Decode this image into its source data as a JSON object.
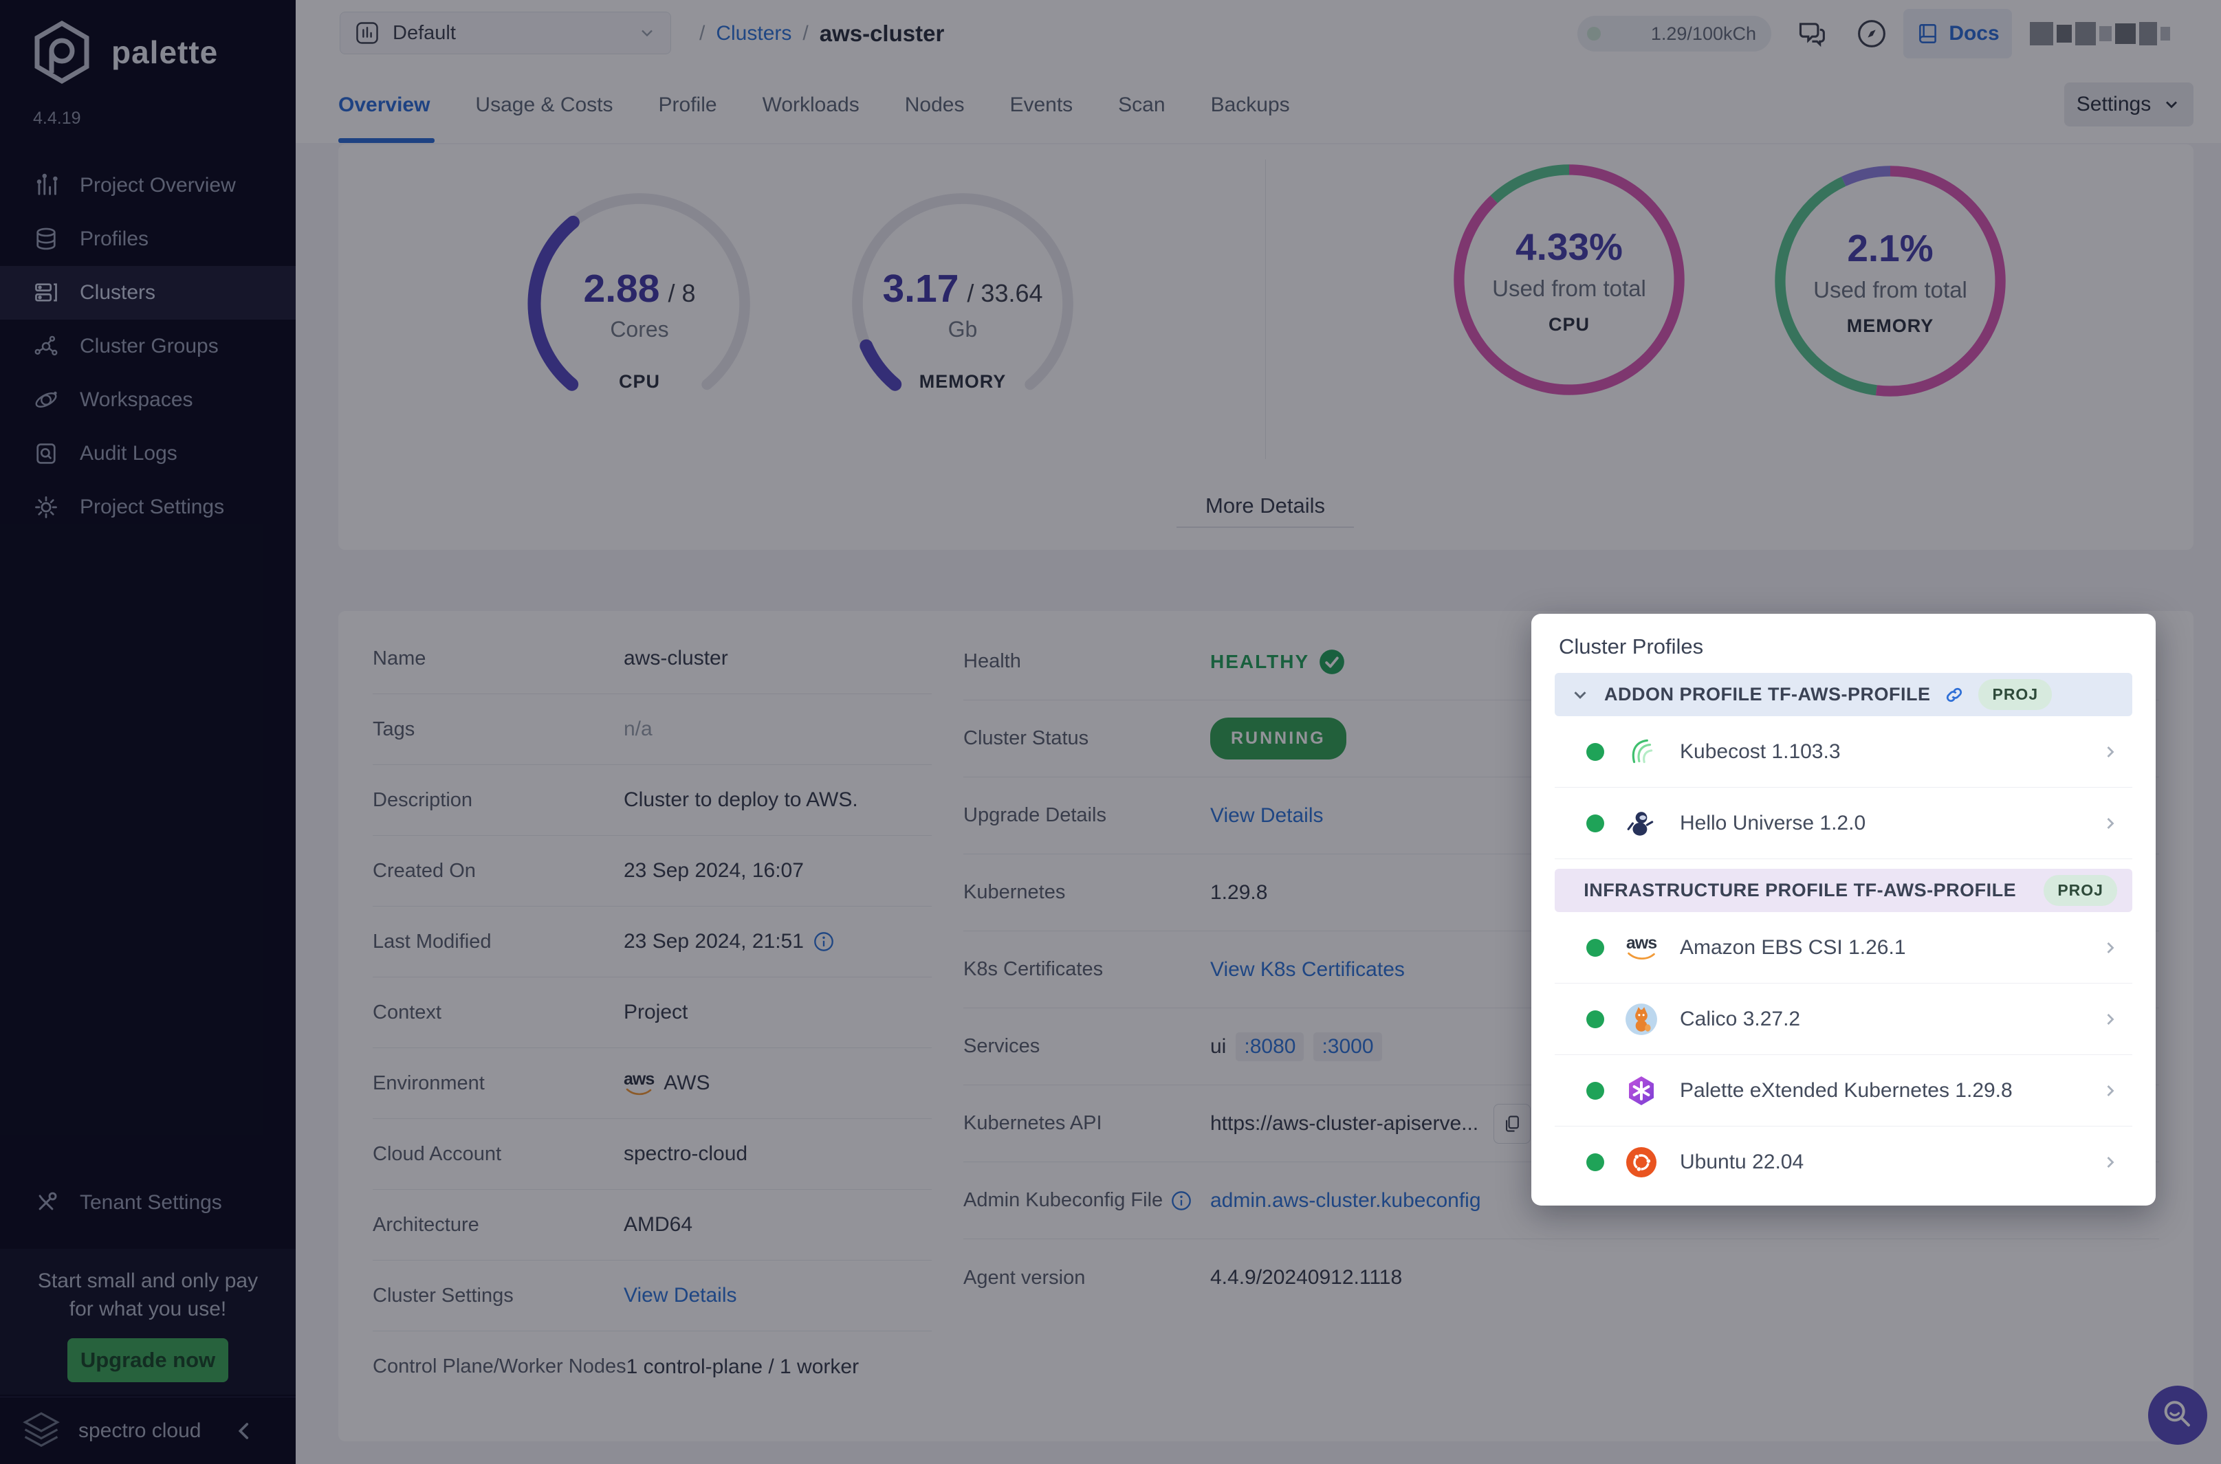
{
  "colors": {
    "accent_blue": "#3077d8",
    "active_tab_blue": "#2f6fd6",
    "success_green": "#27a55e",
    "running_badge_bg": "#36a558",
    "donut_pink": "#d95cb4",
    "donut_green": "#5cc793",
    "donut_purple": "#8f85e0",
    "gauge_indigo": "#564cc0",
    "sidebar_bg": "#0d0e20",
    "upgrade_green": "#3fa85c",
    "fab_indigo": "#5b50c0"
  },
  "sidebar": {
    "logo_text": "palette",
    "version": "4.4.19",
    "items": [
      {
        "label": "Project Overview",
        "icon": "bar-chart-icon",
        "active": false
      },
      {
        "label": "Profiles",
        "icon": "layers-icon",
        "active": false
      },
      {
        "label": "Clusters",
        "icon": "server-icon",
        "active": true
      },
      {
        "label": "Cluster Groups",
        "icon": "network-icon",
        "active": false
      },
      {
        "label": "Workspaces",
        "icon": "orbit-icon",
        "active": false
      },
      {
        "label": "Audit Logs",
        "icon": "audit-icon",
        "active": false
      },
      {
        "label": "Project Settings",
        "icon": "gear-icon",
        "active": false
      }
    ],
    "tenant_settings_label": "Tenant Settings",
    "promo": {
      "line1": "Start small and only pay",
      "line2": "for what you use!",
      "button_label": "Upgrade now"
    },
    "footer": {
      "brand": "spectro cloud"
    }
  },
  "topbar": {
    "project_selector": "Default",
    "breadcrumb": {
      "sep1": "/",
      "link": "Clusters",
      "sep2": "/",
      "current": "aws-cluster"
    },
    "usage_badge": "1.29/100kCh",
    "docs_label": "Docs"
  },
  "tabs": {
    "items": [
      "Overview",
      "Usage & Costs",
      "Profile",
      "Workloads",
      "Nodes",
      "Events",
      "Scan",
      "Backups"
    ],
    "active": "Overview",
    "settings_button": "Settings"
  },
  "chart_data": [
    {
      "id": "cpu-gauge",
      "type": "gauge",
      "value": 2.88,
      "total": 8,
      "value_label": "2.88",
      "total_label": "/ 8",
      "unit": "Cores",
      "footer": "CPU",
      "arc_color": "#564cc0",
      "track_color": "#e8e8ee",
      "span_deg": 280,
      "start_deg": 220
    },
    {
      "id": "memory-gauge",
      "type": "gauge",
      "value": 3.17,
      "total": 33.64,
      "value_label": "3.17",
      "total_label": "/ 33.64",
      "unit": "Gb",
      "footer": "MEMORY",
      "arc_color": "#564cc0",
      "track_color": "#e8e8ee",
      "span_deg": 280,
      "start_deg": 220
    },
    {
      "id": "cpu-donut",
      "type": "donut",
      "center_value": "4.33%",
      "center_caption": "Used from total",
      "center_label": "CPU",
      "segments": [
        {
          "name": "allocated",
          "color": "#d95cb4",
          "fraction": 0.88
        },
        {
          "name": "free",
          "color": "#5cc793",
          "fraction": 0.12
        }
      ]
    },
    {
      "id": "memory-donut",
      "type": "donut",
      "center_value": "2.1%",
      "center_caption": "Used from total",
      "center_label": "MEMORY",
      "segments": [
        {
          "name": "allocated",
          "color": "#d95cb4",
          "fraction": 0.52
        },
        {
          "name": "free",
          "color": "#5cc793",
          "fraction": 0.41
        },
        {
          "name": "reserved",
          "color": "#8f85e0",
          "fraction": 0.07
        }
      ]
    }
  ],
  "overview_card": {
    "more_details": "More Details"
  },
  "details": {
    "left": [
      {
        "label": "Name",
        "value": "aws-cluster"
      },
      {
        "label": "Tags",
        "value": "n/a"
      },
      {
        "label": "Description",
        "value": "Cluster to deploy to AWS."
      },
      {
        "label": "Created On",
        "value": "23 Sep 2024, 16:07"
      },
      {
        "label": "Last Modified",
        "value": "23 Sep 2024, 21:51"
      },
      {
        "label": "Context",
        "value": "Project"
      },
      {
        "label": "Environment",
        "value": "AWS"
      },
      {
        "label": "Cloud Account",
        "value": "spectro-cloud"
      },
      {
        "label": "Architecture",
        "value": "AMD64"
      },
      {
        "label": "Cluster Settings",
        "value": "View Details"
      },
      {
        "label": "Control Plane/Worker Nodes",
        "value": "1 control-plane / 1 worker"
      }
    ],
    "right": [
      {
        "label": "Health",
        "value": "HEALTHY"
      },
      {
        "label": "Cluster Status",
        "value": "RUNNING"
      },
      {
        "label": "Upgrade Details",
        "value": "View Details"
      },
      {
        "label": "Kubernetes",
        "value": "1.29.8"
      },
      {
        "label": "K8s Certificates",
        "value": "View K8s Certificates"
      },
      {
        "label": "Services",
        "value_prefix": "ui",
        "ports": [
          ":8080",
          ":3000"
        ]
      },
      {
        "label": "Kubernetes API",
        "value": "https://aws-cluster-apiserve..."
      },
      {
        "label": "Admin Kubeconfig File",
        "value": "admin.aws-cluster.kubeconfig"
      },
      {
        "label": "Agent version",
        "value": "4.4.9/20240912.1118"
      }
    ]
  },
  "profiles_popup": {
    "title": "Cluster Profiles",
    "sections": [
      {
        "header": "ADDON PROFILE TF-AWS-PROFILE",
        "badge": "PROJ",
        "items": [
          {
            "name": "Kubecost 1.103.3",
            "logo": "kubecost-logo"
          },
          {
            "name": "Hello Universe 1.2.0",
            "logo": "hello-universe-logo"
          }
        ]
      },
      {
        "header": "INFRASTRUCTURE PROFILE TF-AWS-PROFILE",
        "badge": "PROJ",
        "items": [
          {
            "name": "Amazon EBS CSI 1.26.1",
            "logo": "aws-logo"
          },
          {
            "name": "Calico 3.27.2",
            "logo": "calico-logo"
          },
          {
            "name": "Palette eXtended Kubernetes 1.29.8",
            "logo": "palette-k8s-logo"
          },
          {
            "name": "Ubuntu 22.04",
            "logo": "ubuntu-logo"
          }
        ]
      }
    ]
  }
}
